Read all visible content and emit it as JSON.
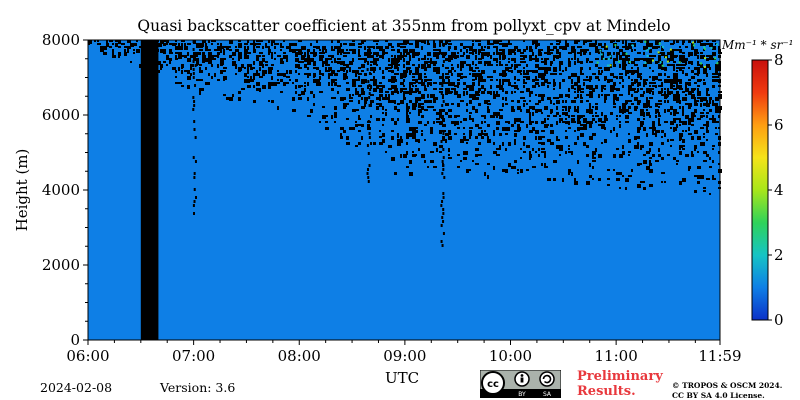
{
  "chart_data": {
    "type": "heatmap",
    "title": "Quasi backscatter coefficient at 355nm from pollyxt_cpv at Mindelo",
    "xlabel": "UTC",
    "ylabel": "Height (m)",
    "x_range": [
      "06:00",
      "11:59"
    ],
    "x_ticks": [
      "06:00",
      "07:00",
      "08:00",
      "09:00",
      "10:00",
      "11:00",
      "11:59"
    ],
    "ylim": [
      0,
      8000
    ],
    "y_ticks": [
      "0",
      "2000",
      "4000",
      "6000",
      "8000"
    ],
    "colorbar": {
      "label": "Mm⁻¹ * sr⁻¹",
      "range": [
        0,
        8
      ],
      "ticks": [
        "0",
        "2",
        "4",
        "6",
        "8"
      ],
      "colormap": [
        "#0b31c8",
        "#0e7fe6",
        "#16c4c4",
        "#2fd35a",
        "#a8e61a",
        "#f5e31a",
        "#ff9e12",
        "#f03a10",
        "#c8100c"
      ]
    },
    "background_value": 0.5,
    "data_gap": {
      "start": "06:30",
      "end": "06:40",
      "color": "#000000"
    },
    "noise_onset_height": [
      {
        "time": "06:00",
        "height": 7800
      },
      {
        "time": "07:00",
        "height": 6500
      },
      {
        "time": "08:00",
        "height": 6000
      },
      {
        "time": "08:30",
        "height": 5000
      },
      {
        "time": "09:00",
        "height": 4300
      },
      {
        "time": "10:00",
        "height": 4300
      },
      {
        "time": "11:00",
        "height": 4000
      },
      {
        "time": "11:59",
        "height": 3900
      }
    ],
    "high_values_near": {
      "time_range": [
        "10:45",
        "11:59"
      ],
      "height_range": [
        7300,
        8000
      ],
      "max_value": 4
    }
  },
  "footer": {
    "date": "2024-02-08",
    "version": "Version: 3.6",
    "preliminary_line1": "Preliminary",
    "preliminary_line2": "Results.",
    "copyright_line1": "© TROPOS & OSCM 2024.",
    "copyright_line2": "CC BY SA 4.0 License.",
    "license_badge": {
      "icon": "cc-by-sa-icon",
      "labels": [
        "BY",
        "SA"
      ]
    }
  }
}
